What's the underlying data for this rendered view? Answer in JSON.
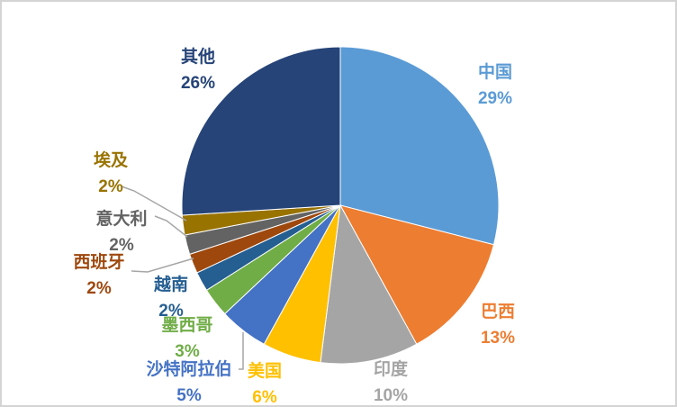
{
  "chart_data": {
    "type": "pie",
    "title": "",
    "legend": "none",
    "start_angle_deg": 0,
    "direction": "clockwise",
    "data_labels": "category-name-and-percentage",
    "background": "#FFFFFF",
    "frame_border_color": "#D4D4D4",
    "leader_line_color": "#A6A6A6",
    "slices": [
      {
        "label": "中国",
        "value": 29,
        "pct_text": "29%",
        "color": "#5B9BD5"
      },
      {
        "label": "巴西",
        "value": 13,
        "pct_text": "13%",
        "color": "#ED7D31"
      },
      {
        "label": "印度",
        "value": 10,
        "pct_text": "10%",
        "color": "#A5A5A5"
      },
      {
        "label": "美国",
        "value": 6,
        "pct_text": "6%",
        "color": "#FFC000"
      },
      {
        "label": "沙特阿拉伯",
        "value": 5,
        "pct_text": "5%",
        "color": "#4472C4"
      },
      {
        "label": "墨西哥",
        "value": 3,
        "pct_text": "3%",
        "color": "#70AD47"
      },
      {
        "label": "越南",
        "value": 2,
        "pct_text": "2%",
        "color": "#255E91"
      },
      {
        "label": "西班牙",
        "value": 2,
        "pct_text": "2%",
        "color": "#9E480E"
      },
      {
        "label": "意大利",
        "value": 2,
        "pct_text": "2%",
        "color": "#636363"
      },
      {
        "label": "埃及",
        "value": 2,
        "pct_text": "2%",
        "color": "#997300"
      },
      {
        "label": "其他",
        "value": 26,
        "pct_text": "26%",
        "color": "#264478"
      }
    ]
  }
}
